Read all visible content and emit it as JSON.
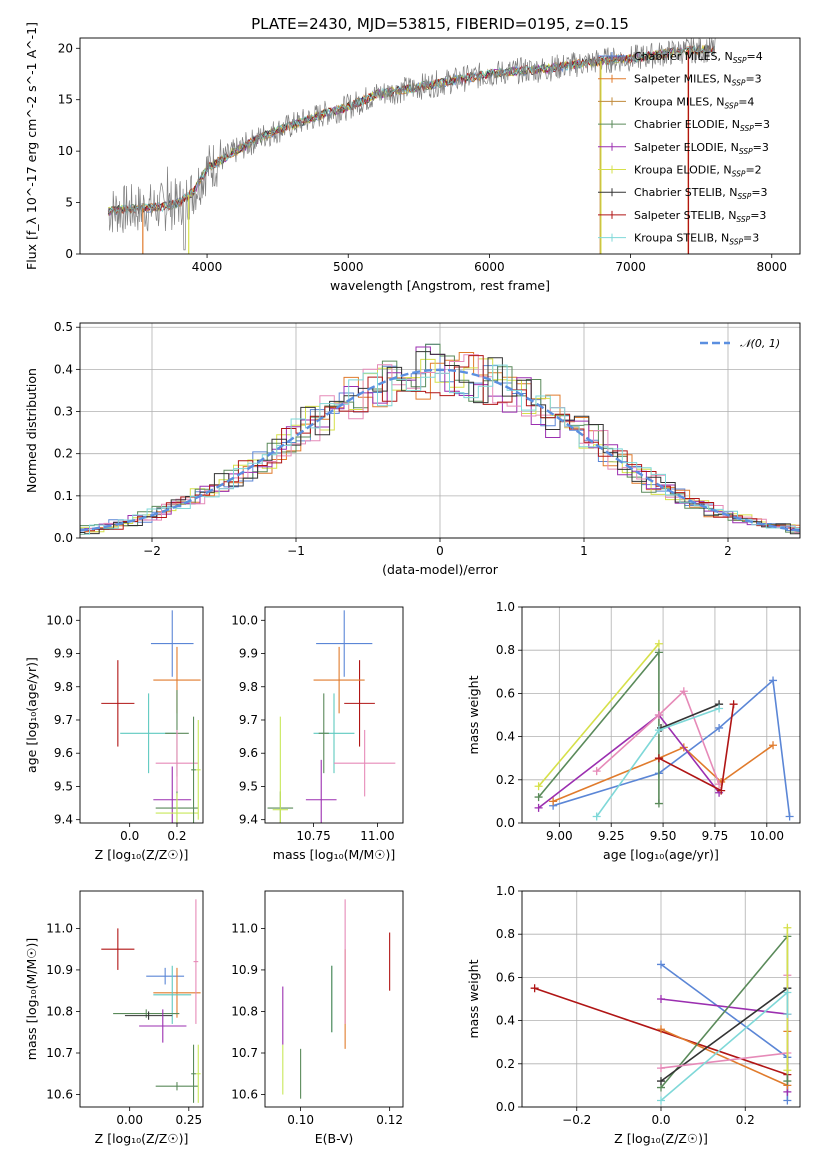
{
  "figure_title": "PLATE=2430, MJD=53815, FIBERID=0195, z=0.15",
  "colors": {
    "chabrier_miles": "#5b86d6",
    "salpeter_miles": "#e07b2c",
    "kroupa_miles": "#c08a3a",
    "chabrier_elodie": "#5a8a5a",
    "salpeter_elodie": "#9b2fb0",
    "kroupa_elodie": "#d6e04a",
    "chabrier_stelib": "#333333",
    "salpeter_stelib": "#b01515",
    "kroupa_stelib": "#7fd8d8",
    "data_spectrum": "#808080",
    "normal_curve": "#5b8fe0",
    "pink": "#e68ab8",
    "lime": "#c8e85a",
    "teal": "#5fc9c0"
  },
  "chart_data": [
    {
      "id": "spectrum",
      "type": "line",
      "title": "PLATE=2430, MJD=53815, FIBERID=0195, z=0.15",
      "xlabel": "wavelength [Angstrom, rest frame]",
      "ylabel": "Flux [f_λ 10^-17 erg cm^-2 s^-1 A^-1]",
      "xlim": [
        3100,
        8200
      ],
      "ylim": [
        0,
        21
      ],
      "xticks": [
        4000,
        5000,
        6000,
        7000,
        8000
      ],
      "yticks": [
        0,
        5,
        10,
        15,
        20
      ],
      "legend_loc": "upper right",
      "legend": [
        {
          "label": "Chabrier MILES, N",
          "sub": "SSP",
          "suffix": "=4",
          "color_key": "chabrier_miles"
        },
        {
          "label": "Salpeter MILES, N",
          "sub": "SSP",
          "suffix": "=3",
          "color_key": "salpeter_miles"
        },
        {
          "label": "Kroupa MILES, N",
          "sub": "SSP",
          "suffix": "=4",
          "color_key": "kroupa_miles"
        },
        {
          "label": "Chabrier ELODIE, N",
          "sub": "SSP",
          "suffix": "=3",
          "color_key": "chabrier_elodie"
        },
        {
          "label": "Salpeter ELODIE, N",
          "sub": "SSP",
          "suffix": "=3",
          "color_key": "salpeter_elodie"
        },
        {
          "label": "Kroupa ELODIE, N",
          "sub": "SSP",
          "suffix": "=2",
          "color_key": "kroupa_elodie"
        },
        {
          "label": "Chabrier STELIB, N",
          "sub": "SSP",
          "suffix": "=3",
          "color_key": "chabrier_stelib"
        },
        {
          "label": "Salpeter STELIB, N",
          "sub": "SSP",
          "suffix": "=3",
          "color_key": "salpeter_stelib"
        },
        {
          "label": "Kroupa STELIB, N",
          "sub": "SSP",
          "suffix": "=3",
          "color_key": "kroupa_stelib"
        }
      ],
      "continuum": [
        [
          3300,
          4.2
        ],
        [
          3500,
          4.4
        ],
        [
          3700,
          4.6
        ],
        [
          3800,
          5.0
        ],
        [
          3900,
          6.0
        ],
        [
          4000,
          8.3
        ],
        [
          4200,
          10.0
        ],
        [
          4400,
          11.5
        ],
        [
          4600,
          12.5
        ],
        [
          4800,
          13.5
        ],
        [
          5000,
          14.3
        ],
        [
          5200,
          15.5
        ],
        [
          5400,
          16.0
        ],
        [
          5600,
          16.5
        ],
        [
          5800,
          17.0
        ],
        [
          6000,
          17.5
        ],
        [
          6200,
          17.8
        ],
        [
          6400,
          18.0
        ],
        [
          6600,
          18.4
        ],
        [
          6800,
          18.8
        ],
        [
          7000,
          19.0
        ],
        [
          7200,
          19.4
        ],
        [
          7400,
          19.8
        ],
        [
          7600,
          19.9
        ]
      ]
    },
    {
      "id": "residuals",
      "type": "step",
      "xlabel": "(data-model)/error",
      "ylabel": "Normed distribution",
      "xlim": [
        -2.5,
        2.5
      ],
      "ylim": [
        0,
        0.51
      ],
      "xticks": [
        -2,
        -1,
        0,
        1,
        2
      ],
      "xtick_labels": [
        "−2",
        "−1",
        "0",
        "1",
        "2"
      ],
      "yticks": [
        0.0,
        0.1,
        0.2,
        0.3,
        0.4,
        0.5
      ],
      "grid": true,
      "legend_loc": "upper right",
      "legend": [
        {
          "label": "𝒩(0, 1)",
          "color_key": "normal_curve",
          "style": "dashed"
        }
      ],
      "bin_width": 0.1
    },
    {
      "id": "z_age",
      "type": "errorbar",
      "xlabel": "Z [log₁₀(Z/Z☉)]",
      "ylabel": "age  [log₁₀(age/yr)]",
      "xlim": [
        -0.21,
        0.31
      ],
      "ylim": [
        9.39,
        10.04
      ],
      "xticks": [
        0.0,
        0.2
      ],
      "xtick_labels": [
        "0.0",
        "0.2"
      ],
      "yticks": [
        9.4,
        9.5,
        9.6,
        9.7,
        9.8,
        9.9,
        10.0
      ],
      "points": [
        {
          "x": -0.05,
          "y": 9.75,
          "xerr": 0.07,
          "yerr": 0.13,
          "color_key": "salpeter_stelib"
        },
        {
          "x": 0.18,
          "y": 9.93,
          "xerr": 0.09,
          "yerr": 0.1,
          "color_key": "chabrier_miles"
        },
        {
          "x": 0.2,
          "y": 9.82,
          "xerr": 0.1,
          "yerr": 0.1,
          "color_key": "salpeter_miles"
        },
        {
          "x": 0.08,
          "y": 9.66,
          "xerr": 0.12,
          "yerr": 0.12,
          "color_key": "teal"
        },
        {
          "x": 0.2,
          "y": 9.66,
          "xerr": 0.05,
          "yerr": 0.13,
          "color_key": "chabrier_elodie"
        },
        {
          "x": 0.2,
          "y": 9.57,
          "xerr": 0.09,
          "yerr": 0.1,
          "color_key": "pink"
        },
        {
          "x": 0.18,
          "y": 9.46,
          "xerr": 0.08,
          "yerr": 0.1,
          "color_key": "salpeter_elodie"
        },
        {
          "x": 0.2,
          "y": 9.435,
          "xerr": 0.09,
          "yerr": 0.05,
          "color_key": "chabrier_elodie"
        },
        {
          "x": 0.2,
          "y": 9.42,
          "xerr": 0.09,
          "yerr": 0.06,
          "color_key": "lime"
        },
        {
          "x": 0.29,
          "y": 9.55,
          "xerr": 0.01,
          "yerr": 0.15,
          "color_key": "lime"
        },
        {
          "x": 0.27,
          "y": 9.55,
          "xerr": 0.01,
          "yerr": 0.16,
          "color_key": "chabrier_elodie"
        }
      ]
    },
    {
      "id": "mass_age",
      "type": "errorbar",
      "xlabel": "mass [log₁₀(M/M☉)]",
      "xlim": [
        10.56,
        11.1
      ],
      "ylim": [
        9.39,
        10.04
      ],
      "xticks": [
        10.75,
        11.0
      ],
      "xtick_labels": [
        "10.75",
        "11.00"
      ],
      "yticks": [
        9.4,
        9.5,
        9.6,
        9.7,
        9.8,
        9.9,
        10.0
      ],
      "points": [
        {
          "x": 10.93,
          "y": 9.75,
          "xerr": 0.06,
          "yerr": 0.13,
          "color_key": "salpeter_stelib"
        },
        {
          "x": 10.87,
          "y": 9.93,
          "xerr": 0.11,
          "yerr": 0.1,
          "color_key": "chabrier_miles"
        },
        {
          "x": 10.85,
          "y": 9.82,
          "xerr": 0.1,
          "yerr": 0.1,
          "color_key": "salpeter_miles"
        },
        {
          "x": 10.83,
          "y": 9.66,
          "xerr": 0.08,
          "yerr": 0.12,
          "color_key": "teal"
        },
        {
          "x": 10.79,
          "y": 9.66,
          "xerr": 0.02,
          "yerr": 0.12,
          "color_key": "chabrier_elodie"
        },
        {
          "x": 10.95,
          "y": 9.57,
          "xerr": 0.12,
          "yerr": 0.1,
          "color_key": "pink"
        },
        {
          "x": 10.78,
          "y": 9.46,
          "xerr": 0.06,
          "yerr": 0.12,
          "color_key": "salpeter_elodie"
        },
        {
          "x": 10.62,
          "y": 9.435,
          "xerr": 0.05,
          "yerr": 0.05,
          "color_key": "chabrier_elodie"
        },
        {
          "x": 10.62,
          "y": 9.43,
          "xerr": 0.03,
          "yerr": 0.28,
          "color_key": "lime"
        }
      ]
    },
    {
      "id": "age_weight",
      "type": "line",
      "xlabel": "age  [log₁₀(age/yr)]",
      "ylabel": "mass weight",
      "xlim": [
        8.82,
        10.16
      ],
      "ylim": [
        0,
        1.0
      ],
      "xticks": [
        9.0,
        9.25,
        9.5,
        9.75,
        10.0
      ],
      "xtick_labels": [
        "9.00",
        "9.25",
        "9.50",
        "9.75",
        "10.00"
      ],
      "yticks": [
        0.0,
        0.2,
        0.4,
        0.6,
        0.8,
        1.0
      ],
      "grid": true,
      "series": [
        {
          "color_key": "chabrier_miles",
          "x": [
            8.97,
            9.48,
            9.77,
            10.03,
            10.11
          ],
          "y": [
            0.08,
            0.23,
            0.44,
            0.66,
            0.03
          ]
        },
        {
          "color_key": "salpeter_miles",
          "x": [
            8.97,
            9.48,
            9.6,
            9.78,
            10.03
          ],
          "y": [
            0.1,
            0.3,
            0.35,
            0.19,
            0.36
          ]
        },
        {
          "color_key": "kroupa_elodie",
          "x": [
            8.9,
            9.48
          ],
          "y": [
            0.17,
            0.83
          ]
        },
        {
          "color_key": "chabrier_elodie",
          "x": [
            8.9,
            9.48,
            9.48
          ],
          "y": [
            0.12,
            0.79,
            0.09
          ]
        },
        {
          "color_key": "salpeter_elodie",
          "x": [
            8.9,
            9.48,
            9.77
          ],
          "y": [
            0.07,
            0.5,
            0.14
          ]
        },
        {
          "color_key": "pink",
          "x": [
            9.18,
            9.48,
            9.6,
            9.77
          ],
          "y": [
            0.24,
            0.5,
            0.61,
            0.18
          ]
        },
        {
          "color_key": "salpeter_stelib",
          "x": [
            9.48,
            9.78,
            9.84
          ],
          "y": [
            0.3,
            0.15,
            0.55
          ]
        },
        {
          "color_key": "chabrier_stelib",
          "x": [
            9.49,
            9.77
          ],
          "y": [
            0.44,
            0.55
          ]
        },
        {
          "color_key": "kroupa_stelib",
          "x": [
            9.18,
            9.48,
            9.77
          ],
          "y": [
            0.03,
            0.43,
            0.53
          ]
        }
      ]
    },
    {
      "id": "z_mass",
      "type": "errorbar",
      "xlabel": "Z [log₁₀(Z/Z☉)]",
      "ylabel": "mass [log₁₀(M/M☉)]",
      "xlim": [
        -0.21,
        0.31
      ],
      "ylim": [
        10.57,
        11.09
      ],
      "xticks": [
        0.0,
        0.25
      ],
      "xtick_labels": [
        "0.00",
        "0.25"
      ],
      "yticks": [
        10.6,
        10.7,
        10.8,
        10.9,
        11.0
      ],
      "points": [
        {
          "x": -0.05,
          "y": 10.95,
          "xerr": 0.07,
          "yerr": 0.05,
          "color_key": "salpeter_stelib"
        },
        {
          "x": 0.15,
          "y": 10.885,
          "xerr": 0.08,
          "yerr": 0.02,
          "color_key": "chabrier_miles"
        },
        {
          "x": 0.2,
          "y": 10.845,
          "xerr": 0.1,
          "yerr": 0.06,
          "color_key": "salpeter_miles"
        },
        {
          "x": 0.18,
          "y": 10.84,
          "xerr": 0.08,
          "yerr": 0.07,
          "color_key": "teal"
        },
        {
          "x": 0.07,
          "y": 10.795,
          "xerr": 0.14,
          "yerr": 0.01,
          "color_key": "chabrier_elodie"
        },
        {
          "x": 0.08,
          "y": 10.79,
          "xerr": 0.1,
          "yerr": 0.01,
          "color_key": "chabrier_stelib"
        },
        {
          "x": 0.14,
          "y": 10.765,
          "xerr": 0.1,
          "yerr": 0.04,
          "color_key": "salpeter_elodie"
        },
        {
          "x": 0.28,
          "y": 10.92,
          "xerr": 0.01,
          "yerr": 0.15,
          "color_key": "pink"
        },
        {
          "x": 0.2,
          "y": 10.62,
          "xerr": 0.09,
          "yerr": 0.01,
          "color_key": "chabrier_elodie"
        },
        {
          "x": 0.29,
          "y": 10.65,
          "xerr": 0.01,
          "yerr": 0.07,
          "color_key": "lime"
        },
        {
          "x": 0.27,
          "y": 10.65,
          "xerr": 0.01,
          "yerr": 0.07,
          "color_key": "chabrier_elodie"
        }
      ]
    },
    {
      "id": "ebv_mass",
      "type": "errorbar",
      "xlabel": "E(B-V)",
      "xlim": [
        0.092,
        0.123
      ],
      "ylim": [
        10.57,
        11.09
      ],
      "xticks": [
        0.1,
        0.12
      ],
      "xtick_labels": [
        "0.10",
        "0.12"
      ],
      "yticks": [
        10.6,
        10.7,
        10.8,
        10.9,
        11.0
      ],
      "points": [
        {
          "x": 0.096,
          "y": 10.79,
          "xerr": 0,
          "yerr": 0.07,
          "color_key": "salpeter_elodie"
        },
        {
          "x": 0.096,
          "y": 10.66,
          "xerr": 0,
          "yerr": 0.06,
          "color_key": "lime"
        },
        {
          "x": 0.1,
          "y": 10.65,
          "xerr": 0,
          "yerr": 0.06,
          "color_key": "chabrier_elodie"
        },
        {
          "x": 0.107,
          "y": 10.83,
          "xerr": 0,
          "yerr": 0.08,
          "color_key": "teal"
        },
        {
          "x": 0.107,
          "y": 10.83,
          "xerr": 0,
          "yerr": 0.08,
          "color_key": "chabrier_elodie"
        },
        {
          "x": 0.11,
          "y": 10.83,
          "xerr": 0,
          "yerr": 0.12,
          "color_key": "salpeter_miles"
        },
        {
          "x": 0.11,
          "y": 10.92,
          "xerr": 0,
          "yerr": 0.15,
          "color_key": "pink"
        },
        {
          "x": 0.12,
          "y": 10.92,
          "xerr": 0,
          "yerr": 0.07,
          "color_key": "salpeter_stelib"
        }
      ]
    },
    {
      "id": "z_weight",
      "type": "line",
      "xlabel": "Z [log₁₀(Z/Z☉)]",
      "ylabel": "mass weight",
      "xlim": [
        -0.33,
        0.33
      ],
      "ylim": [
        0,
        1.0
      ],
      "xticks": [
        -0.2,
        0.0,
        0.2
      ],
      "xtick_labels": [
        "−0.2",
        "0.0",
        "0.2"
      ],
      "yticks": [
        0.0,
        0.2,
        0.4,
        0.6,
        0.8,
        1.0
      ],
      "grid": true,
      "series": [
        {
          "color_key": "salpeter_stelib",
          "x": [
            -0.3,
            0.3
          ],
          "y": [
            0.55,
            0.15
          ]
        },
        {
          "color_key": "chabrier_miles",
          "x": [
            0.0,
            0.3,
            0.3
          ],
          "y": [
            0.66,
            0.23,
            0.03
          ]
        },
        {
          "color_key": "salpeter_elodie",
          "x": [
            0.0,
            0.3,
            0.3
          ],
          "y": [
            0.5,
            0.43,
            0.07
          ]
        },
        {
          "color_key": "salpeter_miles",
          "x": [
            0.0,
            0.3,
            0.3
          ],
          "y": [
            0.36,
            0.1,
            0.35
          ]
        },
        {
          "color_key": "chabrier_elodie",
          "x": [
            0.0,
            0.3,
            0.3
          ],
          "y": [
            0.09,
            0.79,
            0.12
          ]
        },
        {
          "color_key": "chabrier_stelib",
          "x": [
            0.0,
            0.3
          ],
          "y": [
            0.12,
            0.55
          ]
        },
        {
          "color_key": "pink",
          "x": [
            0.0,
            0.3,
            0.3
          ],
          "y": [
            0.18,
            0.25,
            0.61
          ]
        },
        {
          "color_key": "kroupa_elodie",
          "x": [
            0.3,
            0.3
          ],
          "y": [
            0.17,
            0.83
          ]
        },
        {
          "color_key": "kroupa_stelib",
          "x": [
            0.0,
            0.3,
            0.3
          ],
          "y": [
            0.03,
            0.53,
            0.43
          ]
        }
      ]
    }
  ]
}
